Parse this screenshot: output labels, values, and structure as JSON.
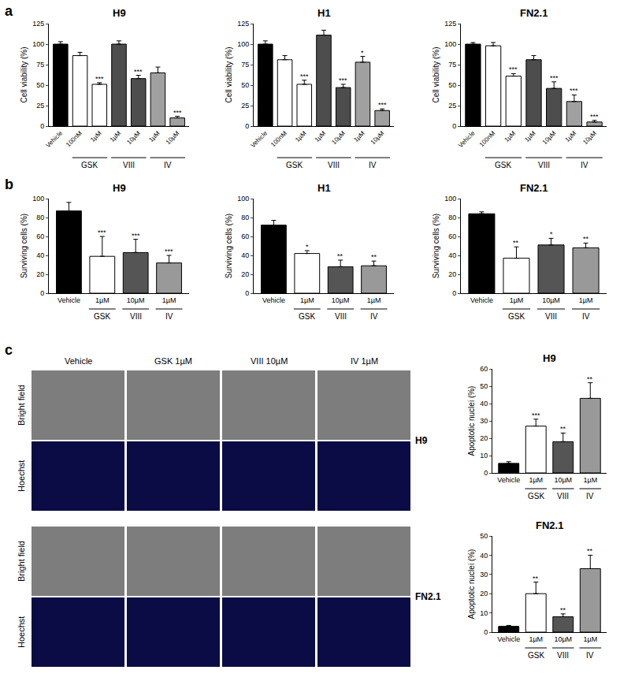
{
  "panel_labels": [
    "a",
    "b",
    "c"
  ],
  "chart_data": [
    {
      "type": "bar",
      "panel": "a",
      "title": "H9",
      "y_label": "Cell viability (%)",
      "categories": [
        "Vehicle",
        "100nM",
        "1µM",
        "1µM",
        "10µM",
        "1µM",
        "10µM"
      ],
      "groups": [
        {
          "label": "GSK",
          "start": 1,
          "end": 2
        },
        {
          "label": "VIII",
          "start": 3,
          "end": 4
        },
        {
          "label": "IV",
          "start": 5,
          "end": 6
        }
      ],
      "values": [
        100,
        86,
        51,
        100,
        58,
        65,
        10
      ],
      "errors": [
        3,
        4,
        2,
        4,
        4,
        7,
        2
      ],
      "significance": [
        null,
        null,
        "***",
        null,
        "***",
        null,
        "***"
      ],
      "colors": [
        "#000000",
        "#ffffff",
        "#ffffff",
        "#4d4d4d",
        "#4d4d4d",
        "#a0a0a0",
        "#a0a0a0"
      ],
      "ylim": [
        0,
        125
      ],
      "yticks": [
        0,
        25,
        50,
        75,
        100,
        125
      ],
      "grid": false
    },
    {
      "type": "bar",
      "panel": "a",
      "title": "H1",
      "y_label": "Cell viability (%)",
      "categories": [
        "Vehicle",
        "100nM",
        "1µM",
        "1µM",
        "10µM",
        "1µM",
        "10µM"
      ],
      "groups": [
        {
          "label": "GSK",
          "start": 1,
          "end": 2
        },
        {
          "label": "VIII",
          "start": 3,
          "end": 4
        },
        {
          "label": "IV",
          "start": 5,
          "end": 6
        }
      ],
      "values": [
        100,
        81,
        51,
        111,
        47,
        78,
        19
      ],
      "errors": [
        4,
        5,
        5,
        6,
        4,
        7,
        2
      ],
      "significance": [
        null,
        null,
        "***",
        null,
        "***",
        "*",
        "***"
      ],
      "colors": [
        "#000000",
        "#ffffff",
        "#ffffff",
        "#4d4d4d",
        "#4d4d4d",
        "#a0a0a0",
        "#a0a0a0"
      ],
      "ylim": [
        0,
        125
      ],
      "yticks": [
        0,
        25,
        50,
        75,
        100,
        125
      ],
      "grid": false
    },
    {
      "type": "bar",
      "panel": "a",
      "title": "FN2.1",
      "y_label": "Cell viability (%)",
      "categories": [
        "Vehicle",
        "100nM",
        "1µM",
        "1µM",
        "10µM",
        "1µM",
        "10µM"
      ],
      "groups": [
        {
          "label": "GSK",
          "start": 1,
          "end": 2
        },
        {
          "label": "VIII",
          "start": 3,
          "end": 4
        },
        {
          "label": "IV",
          "start": 5,
          "end": 6
        }
      ],
      "values": [
        100,
        98,
        61,
        81,
        46,
        30,
        5
      ],
      "errors": [
        2,
        4,
        3,
        5,
        8,
        8,
        2
      ],
      "significance": [
        null,
        null,
        "***",
        null,
        "***",
        "***",
        "***"
      ],
      "colors": [
        "#000000",
        "#ffffff",
        "#ffffff",
        "#4d4d4d",
        "#4d4d4d",
        "#a0a0a0",
        "#a0a0a0"
      ],
      "ylim": [
        0,
        125
      ],
      "yticks": [
        0,
        25,
        50,
        75,
        100,
        125
      ],
      "grid": false
    },
    {
      "type": "bar",
      "panel": "b",
      "title": "H9",
      "y_label": "Surviving cells (%)",
      "categories": [
        "Vehicle",
        "1µM",
        "10µM",
        "1µM"
      ],
      "groups": [
        {
          "label": "GSK",
          "start": 1,
          "end": 1
        },
        {
          "label": "VIII",
          "start": 2,
          "end": 2
        },
        {
          "label": "IV",
          "start": 3,
          "end": 3
        }
      ],
      "values": [
        87,
        39,
        43,
        32
      ],
      "errors": [
        9,
        21,
        14,
        8
      ],
      "significance": [
        null,
        "***",
        "***",
        "***"
      ],
      "colors": [
        "#000000",
        "#ffffff",
        "#555555",
        "#999999"
      ],
      "ylim": [
        0,
        100
      ],
      "yticks": [
        0,
        20,
        40,
        60,
        80,
        100
      ],
      "grid": false
    },
    {
      "type": "bar",
      "panel": "b",
      "title": "H1",
      "y_label": "Surviving cells (%)",
      "categories": [
        "Vehicle",
        "1µM",
        "10µM",
        "1µM"
      ],
      "groups": [
        {
          "label": "GSK",
          "start": 1,
          "end": 1
        },
        {
          "label": "VIII",
          "start": 2,
          "end": 2
        },
        {
          "label": "IV",
          "start": 3,
          "end": 3
        }
      ],
      "values": [
        72,
        42,
        28,
        29
      ],
      "errors": [
        5,
        3,
        7,
        5
      ],
      "significance": [
        null,
        "*",
        "**",
        "**"
      ],
      "colors": [
        "#000000",
        "#ffffff",
        "#555555",
        "#999999"
      ],
      "ylim": [
        0,
        100
      ],
      "yticks": [
        0,
        20,
        40,
        60,
        80,
        100
      ],
      "grid": false
    },
    {
      "type": "bar",
      "panel": "b",
      "title": "FN2.1",
      "y_label": "Surviving cells (%)",
      "categories": [
        "Vehicle",
        "1µM",
        "10µM",
        "1µM"
      ],
      "groups": [
        {
          "label": "GSK",
          "start": 1,
          "end": 1
        },
        {
          "label": "VIII",
          "start": 2,
          "end": 2
        },
        {
          "label": "IV",
          "start": 3,
          "end": 3
        }
      ],
      "values": [
        84,
        37,
        51,
        48
      ],
      "errors": [
        2,
        12,
        7,
        5
      ],
      "significance": [
        null,
        "**",
        "*",
        "**"
      ],
      "colors": [
        "#000000",
        "#ffffff",
        "#555555",
        "#999999"
      ],
      "ylim": [
        0,
        100
      ],
      "yticks": [
        0,
        20,
        40,
        60,
        80,
        100
      ],
      "grid": false
    },
    {
      "type": "bar",
      "panel": "c",
      "title": "H9",
      "y_label": "Apoptotic nuclei (%)",
      "categories": [
        "Vehicle",
        "1µM",
        "10µM",
        "1µM"
      ],
      "groups": [
        {
          "label": "GSK",
          "start": 1,
          "end": 1
        },
        {
          "label": "VIII",
          "start": 2,
          "end": 2
        },
        {
          "label": "IV",
          "start": 3,
          "end": 3
        }
      ],
      "values": [
        5.5,
        27,
        18,
        43
      ],
      "errors": [
        1,
        4,
        5,
        9
      ],
      "significance": [
        null,
        "***",
        "**",
        "**"
      ],
      "colors": [
        "#000000",
        "#ffffff",
        "#555555",
        "#999999"
      ],
      "ylim": [
        0,
        60
      ],
      "yticks": [
        0,
        10,
        20,
        30,
        40,
        50,
        60
      ],
      "grid": false
    },
    {
      "type": "bar",
      "panel": "c",
      "title": "FN2.1",
      "y_label": "Apoptotic nuclei (%)",
      "categories": [
        "Vehicle",
        "1µM",
        "10µM",
        "1µM"
      ],
      "groups": [
        {
          "label": "GSK",
          "start": 1,
          "end": 1
        },
        {
          "label": "VIII",
          "start": 2,
          "end": 2
        },
        {
          "label": "IV",
          "start": 3,
          "end": 3
        }
      ],
      "values": [
        3,
        20,
        8,
        33
      ],
      "errors": [
        0.5,
        6,
        1.5,
        7
      ],
      "significance": [
        null,
        "**",
        "**",
        "**"
      ],
      "colors": [
        "#000000",
        "#ffffff",
        "#555555",
        "#999999"
      ],
      "ylim": [
        0,
        50
      ],
      "yticks": [
        0,
        10,
        20,
        30,
        40,
        50
      ],
      "grid": false
    }
  ],
  "image_panel": {
    "columns": [
      "Vehicle",
      "GSK 1µM",
      "VIII 10µM",
      "IV 1µM"
    ],
    "rows": [
      "Bright field",
      "Hoechst"
    ],
    "cell_lines": [
      "H9",
      "FN2.1"
    ]
  }
}
